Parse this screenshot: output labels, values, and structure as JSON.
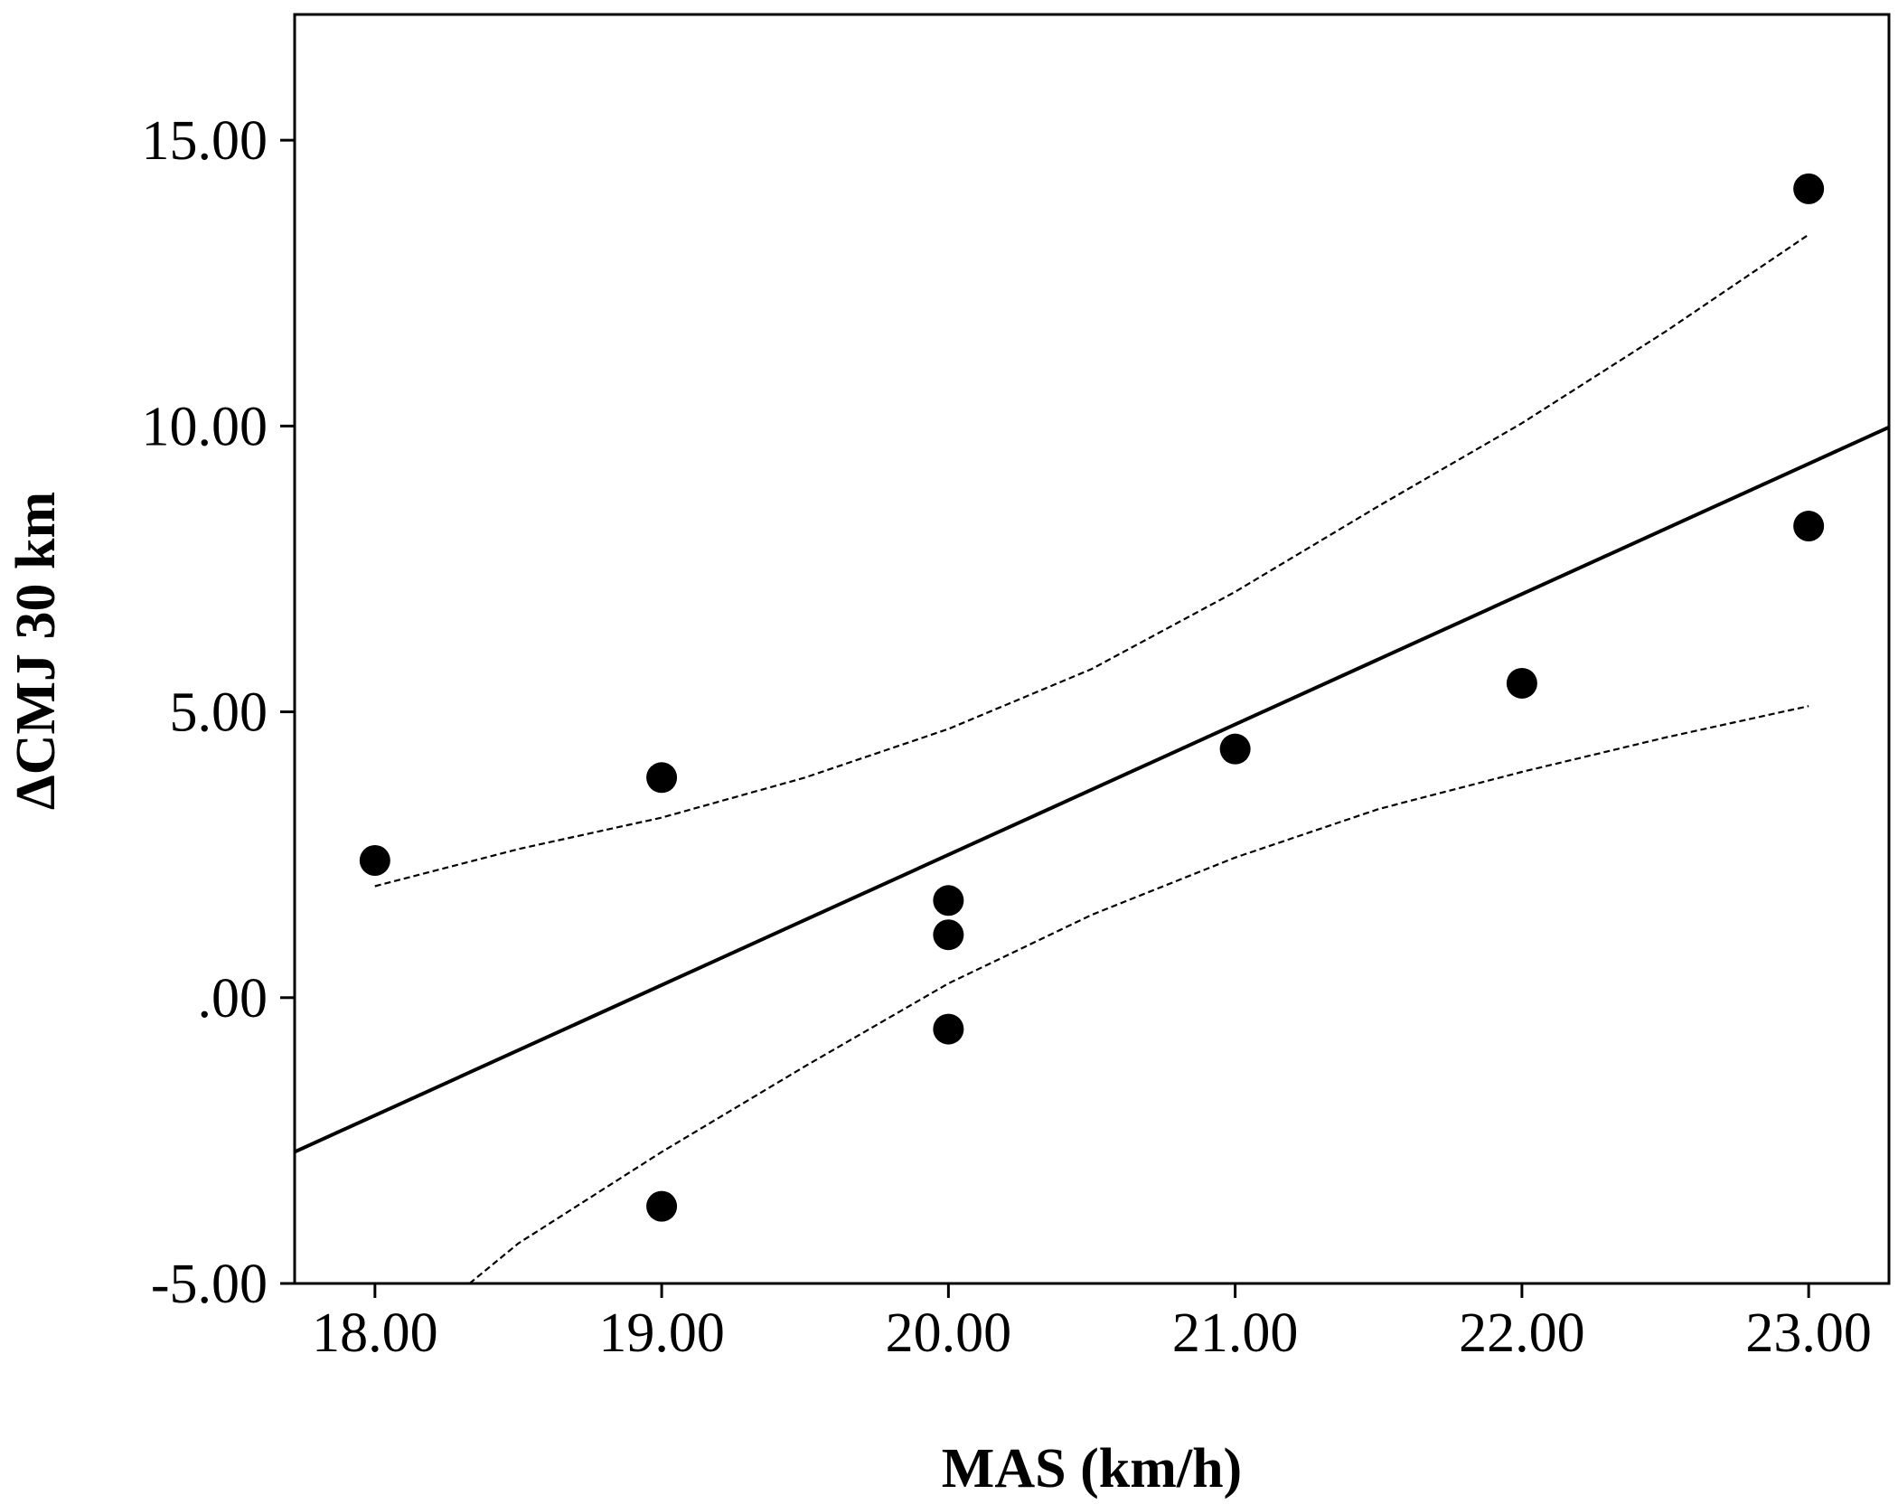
{
  "chart_data": {
    "type": "scatter",
    "title": "",
    "xlabel": "MAS (km/h)",
    "ylabel": "ΔCMJ 30 km",
    "xlim": [
      17.72,
      23.28
    ],
    "ylim": [
      -5.0,
      17.2
    ],
    "x_ticks": [
      18,
      19,
      20,
      21,
      22,
      23
    ],
    "x_tick_labels": [
      "18.00",
      "19.00",
      "20.00",
      "21.00",
      "22.00",
      "23.00"
    ],
    "y_ticks": [
      -5,
      0,
      5,
      10,
      15
    ],
    "y_tick_labels": [
      "-5.00",
      ".00",
      "5.00",
      "10.00",
      "15.00"
    ],
    "grid": false,
    "points": [
      {
        "x": 18,
        "y": 2.4
      },
      {
        "x": 19,
        "y": 3.85
      },
      {
        "x": 19,
        "y": -3.65
      },
      {
        "x": 20,
        "y": 1.7
      },
      {
        "x": 20,
        "y": 1.1
      },
      {
        "x": 20,
        "y": -0.55
      },
      {
        "x": 21,
        "y": 4.35
      },
      {
        "x": 22,
        "y": 5.5
      },
      {
        "x": 23,
        "y": 14.15
      },
      {
        "x": 23,
        "y": 8.25
      }
    ],
    "fit_line": {
      "slope": 2.28,
      "intercept": -43.1
    },
    "ci_upper": [
      {
        "x": 18.0,
        "y": 1.95
      },
      {
        "x": 18.5,
        "y": 2.6
      },
      {
        "x": 19.0,
        "y": 3.15
      },
      {
        "x": 19.5,
        "y": 3.85
      },
      {
        "x": 20.0,
        "y": 4.7
      },
      {
        "x": 20.5,
        "y": 5.75
      },
      {
        "x": 21.0,
        "y": 7.1
      },
      {
        "x": 21.5,
        "y": 8.6
      },
      {
        "x": 22.0,
        "y": 10.05
      },
      {
        "x": 22.5,
        "y": 11.65
      },
      {
        "x": 23.0,
        "y": 13.35
      }
    ],
    "ci_lower": [
      {
        "x": 18.33,
        "y": -5.0
      },
      {
        "x": 18.5,
        "y": -4.3
      },
      {
        "x": 19.0,
        "y": -2.7
      },
      {
        "x": 19.5,
        "y": -1.2
      },
      {
        "x": 20.0,
        "y": 0.25
      },
      {
        "x": 20.5,
        "y": 1.45
      },
      {
        "x": 21.0,
        "y": 2.45
      },
      {
        "x": 21.5,
        "y": 3.3
      },
      {
        "x": 22.0,
        "y": 3.95
      },
      {
        "x": 22.5,
        "y": 4.55
      },
      {
        "x": 23.0,
        "y": 5.1
      }
    ],
    "colors": {
      "points": "#000000",
      "lines": "#000000",
      "background": "#ffffff"
    }
  }
}
